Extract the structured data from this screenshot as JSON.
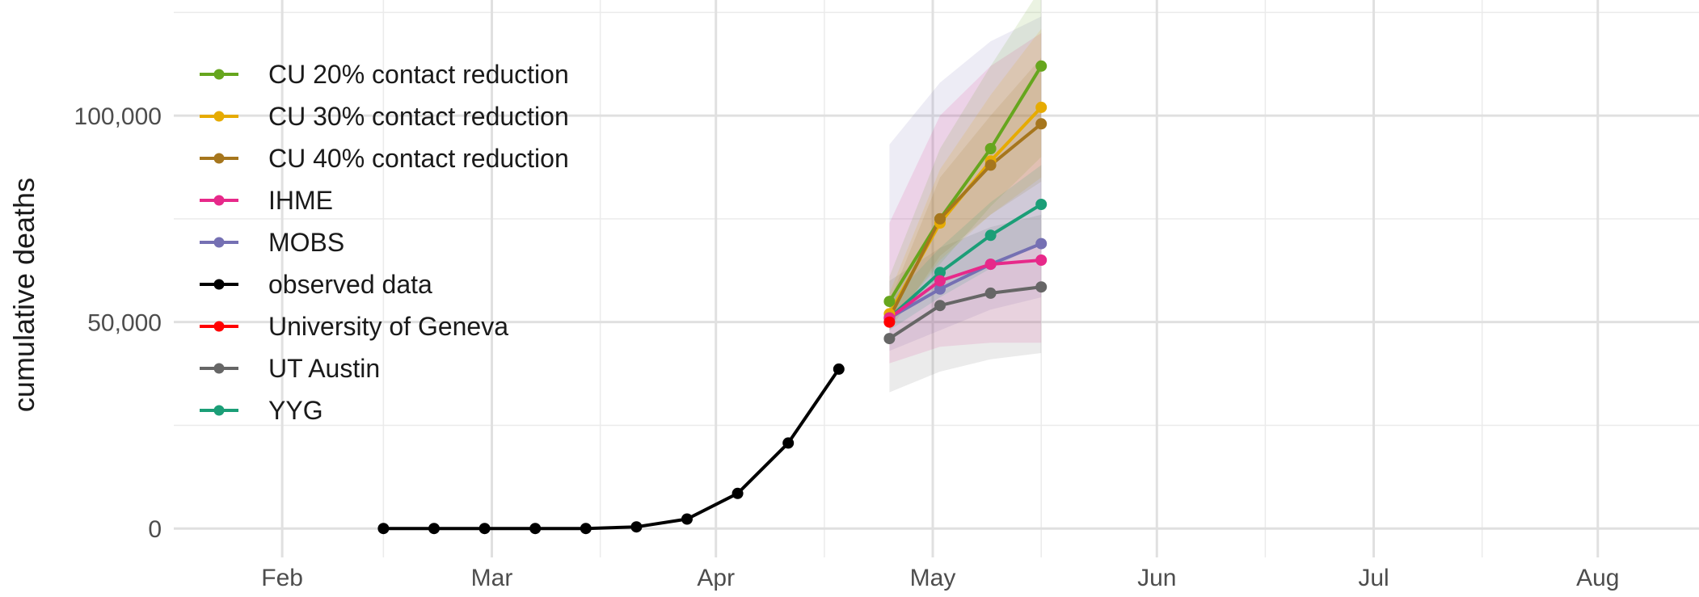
{
  "chart_data": {
    "type": "line",
    "title": "",
    "xlabel": "",
    "ylabel": "cumulative deaths",
    "x_ticks": [
      "Feb",
      "Mar",
      "Apr",
      "May",
      "Jun",
      "Jul",
      "Aug"
    ],
    "x_tick_dates": [
      "2020-02-01",
      "2020-03-01",
      "2020-04-01",
      "2020-05-01",
      "2020-06-01",
      "2020-07-01",
      "2020-08-01"
    ],
    "y_ticks": [
      0,
      50000,
      100000
    ],
    "y_tick_labels": [
      "0",
      "50,000",
      "100,000"
    ],
    "xlim": [
      "2020-01-17",
      "2020-08-15"
    ],
    "ylim": [
      -7000,
      128000
    ],
    "grid": true,
    "legend": "top-left",
    "series": [
      {
        "name": "CU 20% contact reduction",
        "color": "#66a61e",
        "points": [
          [
            "2020-04-25",
            55000
          ],
          [
            "2020-05-02",
            75000
          ],
          [
            "2020-05-09",
            92000
          ],
          [
            "2020-05-16",
            112000
          ]
        ],
        "band": {
          "lower": [
            50000,
            64000,
            78000,
            90000
          ],
          "upper": [
            61000,
            92000,
            112000,
            131000
          ]
        }
      },
      {
        "name": "CU 30% contact reduction",
        "color": "#e6ab02",
        "points": [
          [
            "2020-04-25",
            52000
          ],
          [
            "2020-05-02",
            74000
          ],
          [
            "2020-05-09",
            89000
          ],
          [
            "2020-05-16",
            102000
          ]
        ],
        "band": {
          "lower": [
            49000,
            65000,
            76000,
            85000
          ],
          "upper": [
            57000,
            87000,
            105000,
            121000
          ]
        }
      },
      {
        "name": "CU 40% contact reduction",
        "color": "#a6761d",
        "points": [
          [
            "2020-04-25",
            51000
          ],
          [
            "2020-05-02",
            75000
          ],
          [
            "2020-05-09",
            88000
          ],
          [
            "2020-05-16",
            98000
          ]
        ],
        "band": {
          "lower": [
            48000,
            66000,
            76000,
            84000
          ],
          "upper": [
            55000,
            85000,
            100000,
            114000
          ]
        }
      },
      {
        "name": "IHME",
        "color": "#e7298a",
        "points": [
          [
            "2020-04-25",
            51000
          ],
          [
            "2020-05-02",
            60000
          ],
          [
            "2020-05-09",
            64000
          ],
          [
            "2020-05-16",
            65000
          ]
        ],
        "band": {
          "lower": [
            40000,
            44000,
            45000,
            45000
          ],
          "upper": [
            74000,
            100000,
            112000,
            120000
          ]
        }
      },
      {
        "name": "MOBS",
        "color": "#7570b3",
        "points": [
          [
            "2020-04-25",
            51000
          ],
          [
            "2020-05-02",
            58000
          ],
          [
            "2020-05-09",
            64000
          ],
          [
            "2020-05-16",
            69000
          ]
        ],
        "band": {
          "lower": [
            43000,
            48000,
            53000,
            56000
          ],
          "upper": [
            93000,
            108000,
            118000,
            124000
          ]
        }
      },
      {
        "name": "observed data",
        "color": "#000000",
        "points": [
          [
            "2020-02-15",
            0
          ],
          [
            "2020-02-22",
            0
          ],
          [
            "2020-02-29",
            0
          ],
          [
            "2020-03-07",
            0
          ],
          [
            "2020-03-14",
            0
          ],
          [
            "2020-03-21",
            400
          ],
          [
            "2020-03-28",
            2300
          ],
          [
            "2020-04-04",
            8500
          ],
          [
            "2020-04-11",
            20700
          ],
          [
            "2020-04-18",
            38600
          ]
        ]
      },
      {
        "name": "University of Geneva",
        "color": "#ff0000",
        "points": [
          [
            "2020-04-25",
            50000
          ]
        ]
      },
      {
        "name": "UT Austin",
        "color": "#666666",
        "points": [
          [
            "2020-04-25",
            46000
          ],
          [
            "2020-05-02",
            54000
          ],
          [
            "2020-05-09",
            57000
          ],
          [
            "2020-05-16",
            58500
          ]
        ],
        "band": {
          "lower": [
            33000,
            38000,
            41000,
            42500
          ],
          "upper": [
            60000,
            68000,
            73000,
            76000
          ]
        }
      },
      {
        "name": "YYG",
        "color": "#1b9e77",
        "points": [
          [
            "2020-04-25",
            51000
          ],
          [
            "2020-05-02",
            62000
          ],
          [
            "2020-05-09",
            71000
          ],
          [
            "2020-05-16",
            78500
          ]
        ],
        "band": {
          "lower": [
            48000,
            56000,
            63000,
            69000
          ],
          "upper": [
            55000,
            68000,
            79000,
            88000
          ]
        }
      }
    ],
    "band_order": [
      "MOBS",
      "IHME",
      "UT Austin",
      "CU 20% contact reduction",
      "CU 30% contact reduction",
      "CU 40% contact reduction",
      "YYG"
    ]
  }
}
